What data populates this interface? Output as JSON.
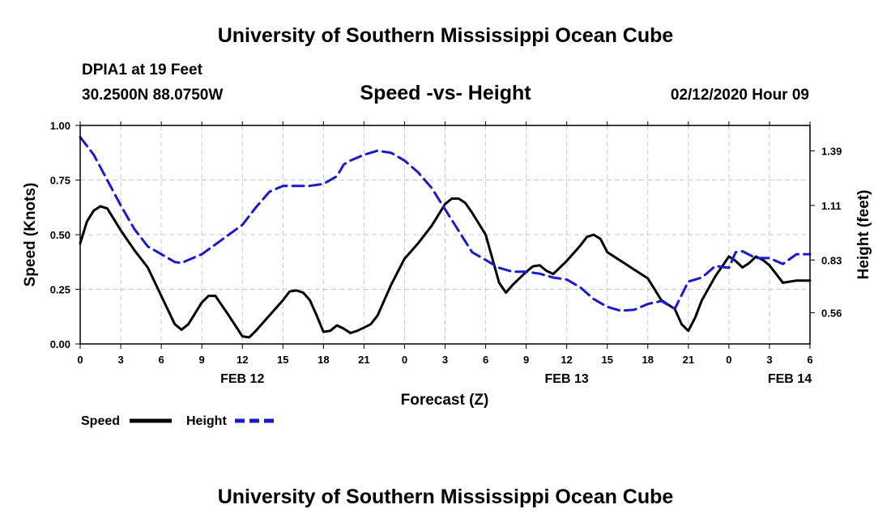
{
  "header": {
    "title": "University of Southern Mississippi Ocean Cube",
    "station": "DPIA1 at 19 Feet",
    "coordinates": "30.2500N 88.0750W",
    "chart_title": "Speed -vs- Height",
    "run_time": "02/12/2020 Hour 09"
  },
  "footer": {
    "title": "University of Southern Mississippi Ocean Cube"
  },
  "colors": {
    "speed": "#000000",
    "height": "#1a1acc",
    "grid": "#c8c8c8"
  },
  "chart_data": {
    "type": "line",
    "title": "Speed -vs- Height",
    "xlabel": "Forecast (Z)",
    "ylabel": "Speed (Knots)",
    "y2label": "Height (feet)",
    "x_range_hours": [
      0,
      54
    ],
    "ylim": [
      0,
      1.0
    ],
    "y2lim": [
      0.4,
      1.52
    ],
    "x_ticks": [
      {
        "h": 0,
        "label": "0"
      },
      {
        "h": 3,
        "label": "3"
      },
      {
        "h": 6,
        "label": "6"
      },
      {
        "h": 9,
        "label": "9"
      },
      {
        "h": 12,
        "label": "12"
      },
      {
        "h": 15,
        "label": "15"
      },
      {
        "h": 18,
        "label": "18"
      },
      {
        "h": 21,
        "label": "21"
      },
      {
        "h": 24,
        "label": "0"
      },
      {
        "h": 27,
        "label": "3"
      },
      {
        "h": 30,
        "label": "6"
      },
      {
        "h": 33,
        "label": "9"
      },
      {
        "h": 36,
        "label": "12"
      },
      {
        "h": 39,
        "label": "15"
      },
      {
        "h": 42,
        "label": "18"
      },
      {
        "h": 45,
        "label": "21"
      },
      {
        "h": 48,
        "label": "0"
      },
      {
        "h": 51,
        "label": "3"
      },
      {
        "h": 54,
        "label": "6"
      }
    ],
    "date_labels": [
      {
        "h": 12,
        "label": "FEB 12"
      },
      {
        "h": 36,
        "label": "FEB 13"
      },
      {
        "h": 52.5,
        "label": "FEB 14"
      }
    ],
    "y_ticks": [
      {
        "v": 0,
        "label": "0.00"
      },
      {
        "v": 0.25,
        "label": "0.25"
      },
      {
        "v": 0.5,
        "label": "0.50"
      },
      {
        "v": 0.75,
        "label": "0.75"
      },
      {
        "v": 1.0,
        "label": "1.00"
      }
    ],
    "y2_ticks": [
      {
        "v": 0.56,
        "label": "0.56"
      },
      {
        "v": 0.83,
        "label": "0.83"
      },
      {
        "v": 1.11,
        "label": "1.11"
      },
      {
        "v": 1.39,
        "label": "1.39"
      }
    ],
    "series": [
      {
        "name": "Speed",
        "axis": "left",
        "style": "solid",
        "points": [
          [
            0,
            0.46
          ],
          [
            0.5,
            0.56
          ],
          [
            1,
            0.61
          ],
          [
            1.5,
            0.63
          ],
          [
            2,
            0.62
          ],
          [
            3,
            0.52
          ],
          [
            4,
            0.43
          ],
          [
            5,
            0.35
          ],
          [
            6,
            0.22
          ],
          [
            7,
            0.09
          ],
          [
            7.5,
            0.065
          ],
          [
            8,
            0.09
          ],
          [
            9,
            0.19
          ],
          [
            9.5,
            0.22
          ],
          [
            10,
            0.22
          ],
          [
            11,
            0.13
          ],
          [
            12,
            0.035
          ],
          [
            12.5,
            0.03
          ],
          [
            13,
            0.06
          ],
          [
            14,
            0.13
          ],
          [
            15,
            0.2
          ],
          [
            15.5,
            0.24
          ],
          [
            16,
            0.245
          ],
          [
            16.5,
            0.235
          ],
          [
            17,
            0.2
          ],
          [
            17.5,
            0.13
          ],
          [
            18,
            0.055
          ],
          [
            18.5,
            0.06
          ],
          [
            19,
            0.085
          ],
          [
            19.5,
            0.07
          ],
          [
            20,
            0.05
          ],
          [
            20.5,
            0.06
          ],
          [
            21,
            0.075
          ],
          [
            21.5,
            0.09
          ],
          [
            22,
            0.13
          ],
          [
            23,
            0.27
          ],
          [
            24,
            0.39
          ],
          [
            25,
            0.46
          ],
          [
            26,
            0.54
          ],
          [
            27,
            0.64
          ],
          [
            27.5,
            0.665
          ],
          [
            28,
            0.665
          ],
          [
            28.5,
            0.645
          ],
          [
            29,
            0.6
          ],
          [
            30,
            0.5
          ],
          [
            31,
            0.28
          ],
          [
            31.5,
            0.235
          ],
          [
            32,
            0.27
          ],
          [
            33,
            0.33
          ],
          [
            33.5,
            0.355
          ],
          [
            34,
            0.36
          ],
          [
            34.5,
            0.335
          ],
          [
            35,
            0.32
          ],
          [
            36,
            0.38
          ],
          [
            37,
            0.45
          ],
          [
            37.5,
            0.49
          ],
          [
            38,
            0.5
          ],
          [
            38.5,
            0.48
          ],
          [
            39,
            0.42
          ],
          [
            40,
            0.38
          ],
          [
            41,
            0.34
          ],
          [
            42,
            0.3
          ],
          [
            43,
            0.2
          ],
          [
            44,
            0.16
          ],
          [
            44.5,
            0.09
          ],
          [
            45,
            0.06
          ],
          [
            45.5,
            0.12
          ],
          [
            46,
            0.2
          ],
          [
            47,
            0.31
          ],
          [
            48,
            0.4
          ],
          [
            48.5,
            0.38
          ],
          [
            49,
            0.35
          ],
          [
            49.5,
            0.37
          ],
          [
            50,
            0.4
          ],
          [
            50.5,
            0.385
          ],
          [
            51,
            0.36
          ],
          [
            52,
            0.28
          ],
          [
            53,
            0.29
          ],
          [
            54,
            0.29
          ]
        ]
      },
      {
        "name": "Height",
        "axis": "right",
        "style": "dashed",
        "points": [
          [
            0,
            1.46
          ],
          [
            1,
            1.37
          ],
          [
            2,
            1.24
          ],
          [
            3,
            1.11
          ],
          [
            4,
            0.99
          ],
          [
            5,
            0.9
          ],
          [
            6,
            0.86
          ],
          [
            7,
            0.82
          ],
          [
            7.5,
            0.815
          ],
          [
            8,
            0.83
          ],
          [
            9,
            0.86
          ],
          [
            10,
            0.91
          ],
          [
            11,
            0.96
          ],
          [
            12,
            1.01
          ],
          [
            13,
            1.1
          ],
          [
            14,
            1.18
          ],
          [
            15,
            1.21
          ],
          [
            16,
            1.21
          ],
          [
            17,
            1.21
          ],
          [
            18,
            1.22
          ],
          [
            19,
            1.26
          ],
          [
            19.5,
            1.32
          ],
          [
            20,
            1.34
          ],
          [
            21,
            1.37
          ],
          [
            22,
            1.39
          ],
          [
            23,
            1.38
          ],
          [
            24,
            1.34
          ],
          [
            25,
            1.28
          ],
          [
            26,
            1.2
          ],
          [
            27,
            1.09
          ],
          [
            28,
            0.98
          ],
          [
            29,
            0.87
          ],
          [
            30,
            0.83
          ],
          [
            31,
            0.79
          ],
          [
            32,
            0.77
          ],
          [
            33,
            0.77
          ],
          [
            34,
            0.76
          ],
          [
            35,
            0.74
          ],
          [
            36,
            0.73
          ],
          [
            37,
            0.69
          ],
          [
            38,
            0.63
          ],
          [
            39,
            0.59
          ],
          [
            40,
            0.57
          ],
          [
            41,
            0.575
          ],
          [
            42,
            0.605
          ],
          [
            43,
            0.62
          ],
          [
            44,
            0.58
          ],
          [
            45,
            0.72
          ],
          [
            46,
            0.74
          ],
          [
            47,
            0.8
          ],
          [
            48,
            0.79
          ],
          [
            48.5,
            0.87
          ],
          [
            49,
            0.875
          ],
          [
            50,
            0.84
          ],
          [
            51,
            0.84
          ],
          [
            52,
            0.81
          ],
          [
            53,
            0.86
          ],
          [
            54,
            0.86
          ]
        ]
      }
    ]
  },
  "legend": {
    "speed_label": "Speed",
    "height_label": "Height"
  }
}
